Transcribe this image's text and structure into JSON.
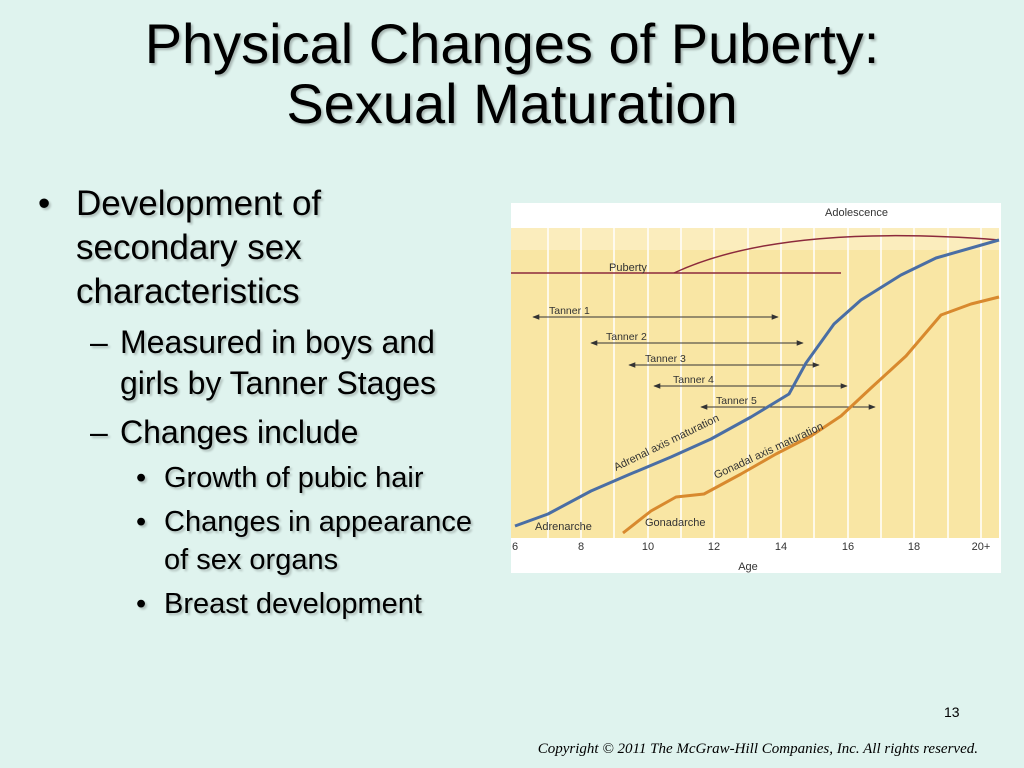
{
  "slide": {
    "title_line1": "Physical Changes of Puberty:",
    "title_line2": "Sexual Maturation",
    "bullet_char": "•",
    "dash_char": "–",
    "bullet1": "Development of secondary sex characteristics",
    "sub1": "Measured in boys and girls by Tanner Stages",
    "sub2": "Changes include",
    "item1": "Growth of pubic hair",
    "item2": "Changes in appearance of sex organs",
    "item3": "Breast development",
    "page_number": "13",
    "copyright": "Copyright © 2011 The McGraw-Hill Companies, Inc. All rights reserved."
  },
  "figure": {
    "xlabel": "Age",
    "x_ticks": [
      "6",
      "8",
      "10",
      "12",
      "14",
      "16",
      "18",
      "20+"
    ],
    "adolescence_label": "Adolescence",
    "puberty_label": "Puberty",
    "tanner_labels": [
      "Tanner 1",
      "Tanner 2",
      "Tanner 3",
      "Tanner 4",
      "Tanner 5"
    ],
    "adrenal_label": "Adrenal axis maturation",
    "gonadal_label": "Gonadal axis maturation",
    "adrenarche_label": "Adrenarche",
    "gonadarche_label": "Gonadarche",
    "colors": {
      "background": "#f9e6a4",
      "band": "#fbedbd",
      "adrenal": "#4a6ea4",
      "gonadal": "#d8892e",
      "arc": "#8c2a3c",
      "arrow": "#333333",
      "text": "#333333"
    }
  }
}
